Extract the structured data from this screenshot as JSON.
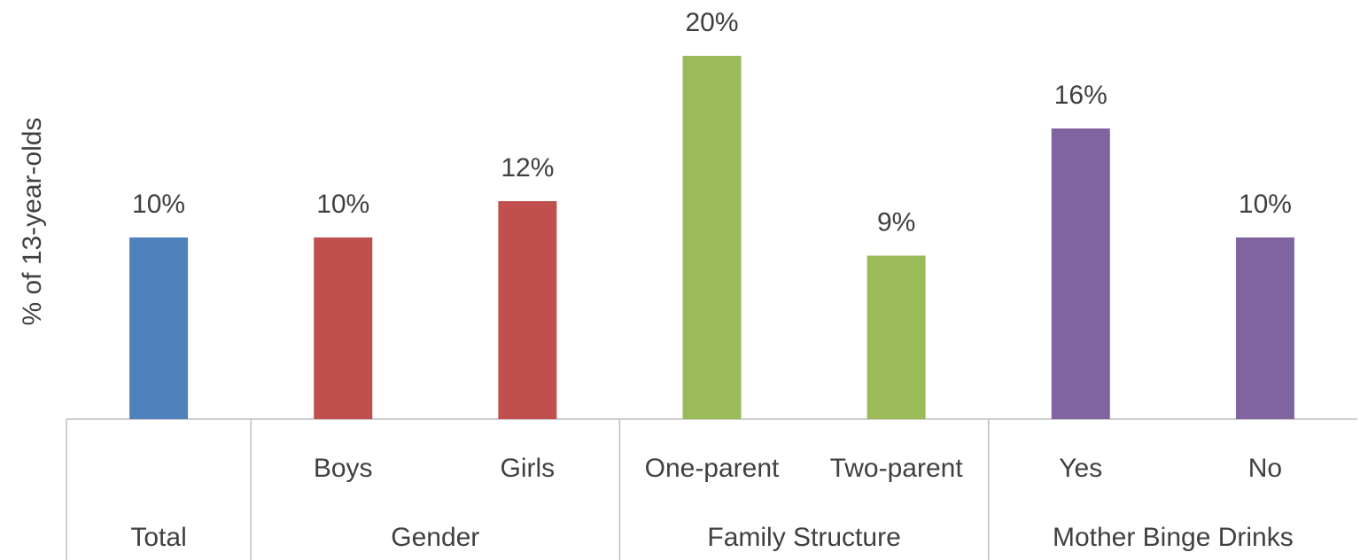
{
  "chart_data": {
    "type": "bar",
    "y_label": "% of 13-year-olds",
    "groups": [
      {
        "label": "Total",
        "categories": [
          null
        ],
        "values": [
          10
        ],
        "value_labels": [
          "10%"
        ],
        "color": "#4f81bd"
      },
      {
        "label": "Gender",
        "categories": [
          "Boys",
          "Girls"
        ],
        "values": [
          10,
          12
        ],
        "value_labels": [
          "10%",
          "12%"
        ],
        "color": "#c0504d"
      },
      {
        "label": "Family Structure",
        "categories": [
          "One-parent",
          "Two-parent"
        ],
        "values": [
          20,
          9
        ],
        "value_labels": [
          "20%",
          "9%"
        ],
        "color": "#9bbb59"
      },
      {
        "label": "Mother Binge Drinks",
        "categories": [
          "Yes",
          "No"
        ],
        "values": [
          16,
          10
        ],
        "value_labels": [
          "16%",
          "10%"
        ],
        "color": "#8064a2"
      }
    ]
  }
}
